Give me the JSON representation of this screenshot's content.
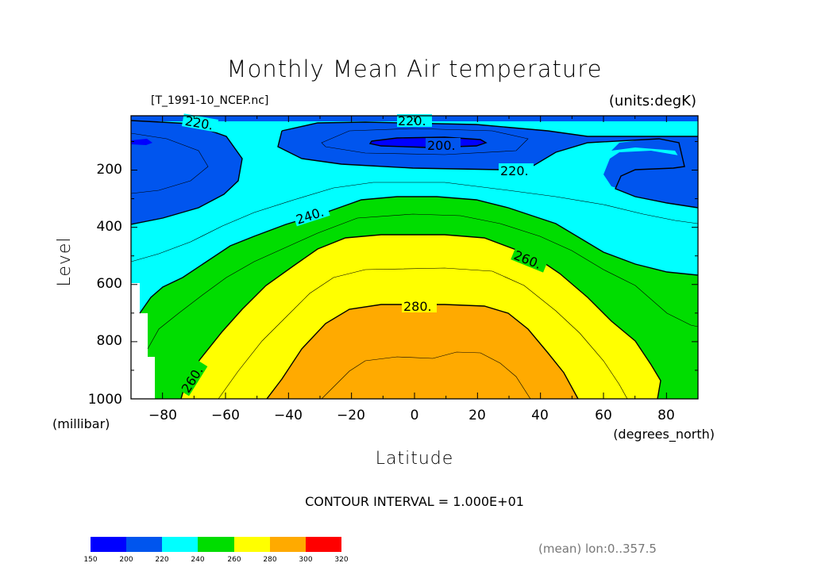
{
  "chart_data": {
    "type": "contour",
    "title": "Monthly Mean Air temperature",
    "file_label": "[T_1991-10_NCEP.nc]",
    "units_label": "(units:degK)",
    "xlabel": "Latitude",
    "xunits": "(degrees_north)",
    "ylabel": "Level",
    "yunits": "(millibar)",
    "xlim": [
      -90,
      90
    ],
    "ylim": [
      1000,
      10
    ],
    "x_ticks": [
      -80,
      -60,
      -40,
      -20,
      0,
      20,
      40,
      60,
      80
    ],
    "x_tick_labels": [
      "−80",
      "−60",
      "−40",
      "−20",
      "0",
      "20",
      "40",
      "60",
      "80"
    ],
    "y_ticks": [
      200,
      400,
      600,
      800,
      1000
    ],
    "y_tick_labels": [
      "200",
      "400",
      "600",
      "800",
      "1000"
    ],
    "contour_interval_text": "CONTOUR INTERVAL = 1.000E+01",
    "contour_labels": [
      "220.",
      "220.",
      "200.",
      "220.",
      "240.",
      "260.",
      "280.",
      "260."
    ],
    "footer_text": "(mean) lon:0..357.5",
    "colorbar": {
      "levels": [
        "150",
        "200",
        "220",
        "240",
        "260",
        "280",
        "300",
        "320"
      ],
      "colors": [
        "#0000ff",
        "#0055ee",
        "#00ffff",
        "#00dd00",
        "#ffff00",
        "#ffaa00",
        "#ff0000"
      ]
    }
  }
}
